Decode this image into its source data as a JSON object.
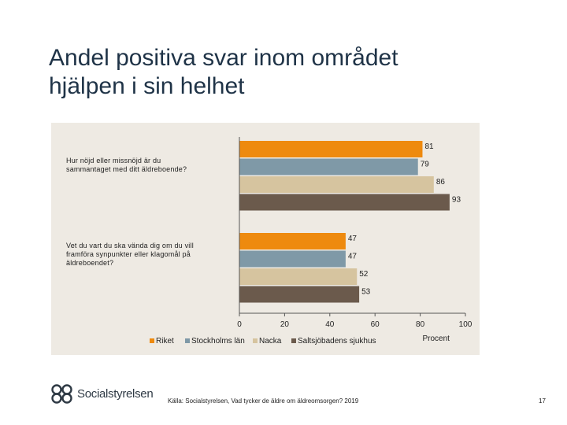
{
  "slide": {
    "title_line1": "Andel positiva svar inom området",
    "title_line2": "hjälpen i sin helhet",
    "source": "Källa: Socialstyrelsen, Vad tycker de äldre om äldreomsorgen? 2019",
    "page_number": "17",
    "logo_text": "Socialstyrelsen",
    "logo_icon": "socialstyrelsen-logo-icon"
  },
  "chart_data": {
    "type": "bar",
    "orientation": "horizontal",
    "categories": [
      "Hur nöjd eller missnöjd är du sammantaget med ditt äldreboende?",
      "Vet du vart du ska vända dig om du vill framföra synpunkter eller klagomål på äldreboendet?"
    ],
    "category_lines": [
      [
        "Hur nöjd eller missnöjd är du",
        "sammantaget med ditt äldreboende?"
      ],
      [
        "Vet du vart du ska vända dig om du vill",
        "framföra synpunkter eller klagomål på",
        "äldreboendet?"
      ]
    ],
    "series": [
      {
        "name": "Riket",
        "values": [
          81,
          47
        ],
        "color": "#ee8a0e"
      },
      {
        "name": "Stockholms län",
        "values": [
          79,
          47
        ],
        "color": "#7f99a7"
      },
      {
        "name": "Nacka",
        "values": [
          86,
          52
        ],
        "color": "#d6c49f"
      },
      {
        "name": "Saltsjöbadens sjukhus",
        "values": [
          93,
          53
        ],
        "color": "#6b5a4c"
      }
    ],
    "xlim": [
      0,
      100
    ],
    "xticks": [
      0,
      20,
      40,
      60,
      80,
      100
    ],
    "xlabel": "Procent",
    "legend_position": "bottom",
    "grid": false
  }
}
